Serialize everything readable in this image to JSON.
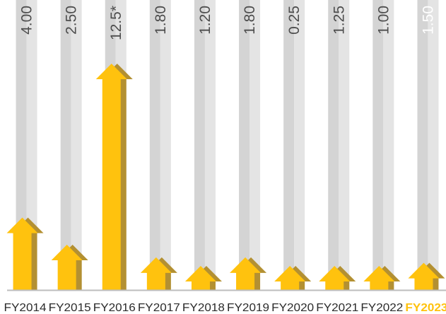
{
  "chart_data": {
    "type": "bar",
    "title": "",
    "xlabel": "",
    "ylabel": "",
    "categories": [
      "FY2014",
      "FY2015",
      "FY2016",
      "FY2017",
      "FY2018",
      "FY2019",
      "FY2020",
      "FY2021",
      "FY2022",
      "FY2023"
    ],
    "values": [
      4.0,
      2.5,
      12.5,
      1.8,
      1.2,
      1.8,
      0.25,
      1.25,
      1.0,
      1.5
    ],
    "value_labels": [
      "4.00",
      "2.50",
      "12.5*",
      "1.80",
      "1.20",
      "1.80",
      "0.25",
      "1.25",
      "1.00",
      "1.50"
    ],
    "highlight_index": 9,
    "ylim": [
      0,
      12.5
    ],
    "grid": false,
    "legend": "none"
  },
  "colors": {
    "arrow": "#FFC20E",
    "arrow_shadow": "#B39032",
    "column_background": "#D4D4D4",
    "column_background_light": "#E4E4E4",
    "value_text": "#4D4D4D",
    "highlight_value_text": "#FFFFFF",
    "category_text": "#2B2B2B",
    "highlight_category_text": "#FFC20E",
    "baseline": "#BDBDBD"
  },
  "icons": {
    "bar_shape": "up-arrow"
  }
}
